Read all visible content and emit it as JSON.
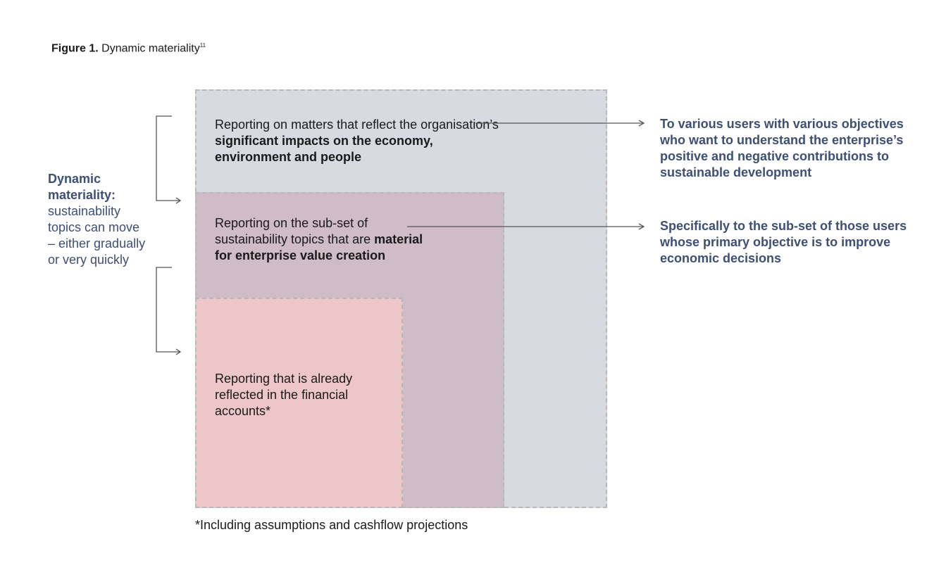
{
  "title": {
    "label": "Figure 1.",
    "text": " Dynamic materiality",
    "sup": "11"
  },
  "left_note": {
    "heading": "Dynamic materiality:",
    "body": "sustainability topics can move – either gradually or very quickly"
  },
  "boxes": {
    "outer": {
      "text_a": "Reporting on matters that reflect the organisation’s ",
      "text_b": "significant impacts on the economy, environment and people"
    },
    "middle": {
      "text_a": "Reporting on the sub-set of sustainability topics that are ",
      "text_b": "material for enterprise value creation"
    },
    "inner": {
      "text_a": "Reporting that is already reflected in the financial accounts*"
    }
  },
  "right_notes": [
    "To various users with various objectives who want to understand the enterprise’s positive and negative contributions to sustainable development",
    "Specifically to the sub-set of those users whose primary objective is to improve economic decisions"
  ],
  "footnote": "*Including assumptions and cashflow projections",
  "colors": {
    "outer": "#d6dbe2",
    "middle": "#d0bcc6",
    "inner": "#ecc6c8",
    "accent": "#3d4f74"
  }
}
